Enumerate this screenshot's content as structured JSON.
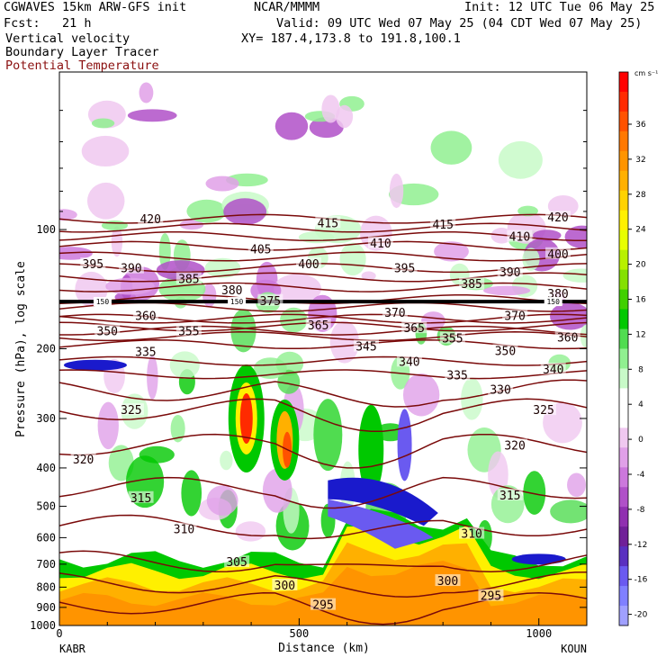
{
  "header": {
    "model": "CGWAVES 15km ARW-GFS init",
    "org": "NCAR/MMMM",
    "init": "Init: 12 UTC Tue 06 May 25",
    "fcst": "Fcst:   21 h",
    "valid": "Valid: 09 UTC Wed 07 May 25 (04 CDT Wed 07 May 25)",
    "field1": "Vertical velocity",
    "field2": "Boundary Layer Tracer",
    "field3": "Potential Temperature",
    "xy": "XY= 187.4,173.8 to 191.8,100.1"
  },
  "colors": {
    "theta_contour": "#7a0a0a",
    "title_red": "#8b1010",
    "tracer": "#1a1acc"
  },
  "chart_data": {
    "type": "heatmap",
    "xlabel": "Distance (km)",
    "ylabel": "Pressure (hPa), log scale",
    "xlim": [
      0,
      1100
    ],
    "ylim": [
      1000,
      40
    ],
    "y_scale": "log",
    "x_ticks": [
      0,
      500,
      1000
    ],
    "y_ticks": [
      100,
      200,
      300,
      400,
      500,
      600,
      700,
      800,
      900,
      1000
    ],
    "x_end_labels": {
      "left": "KABR",
      "right": "KOUN"
    },
    "colorbar": {
      "unit": "cm s⁻¹",
      "ticks": [
        36,
        32,
        28,
        24,
        20,
        16,
        12,
        8,
        4,
        0,
        -4,
        -8,
        -12,
        -16,
        -20
      ],
      "colors": [
        "#ff0000",
        "#ff2a00",
        "#ff5200",
        "#ff7800",
        "#ff9400",
        "#ffb000",
        "#ffd200",
        "#fff000",
        "#e8ff00",
        "#b8f000",
        "#84e000",
        "#40d000",
        "#00c800",
        "#50dc50",
        "#90f090",
        "#c8fac8",
        "#ffffff",
        "#ffffff",
        "#f0c8f0",
        "#e0a0e8",
        "#cc78dc",
        "#b050c8",
        "#9030b0",
        "#702098",
        "#5a30c0",
        "#6a5af0",
        "#8080ff",
        "#a0a0ff"
      ]
    },
    "theta_contours": [
      {
        "theta": 420,
        "p": 94
      },
      {
        "theta": 415,
        "p": 99
      },
      {
        "theta": 410,
        "p": 104
      },
      {
        "theta": 405,
        "p": 110
      },
      {
        "theta": 400,
        "p": 117
      },
      {
        "theta": 395,
        "p": 125
      },
      {
        "theta": 390,
        "p": 132
      },
      {
        "theta": 385,
        "p": 140
      },
      {
        "theta": 380,
        "p": 150
      },
      {
        "theta": 375,
        "p": 157
      },
      {
        "theta": 370,
        "p": 168
      },
      {
        "theta": 365,
        "p": 176
      },
      {
        "theta": 360,
        "p": 168
      },
      {
        "theta": 355,
        "p": 186
      },
      {
        "theta": 350,
        "p": 180
      },
      {
        "theta": 345,
        "p": 195
      },
      {
        "theta": 340,
        "p": 215
      },
      {
        "theta": 335,
        "p": 232
      },
      {
        "theta": 330,
        "p": 255
      },
      {
        "theta": 325,
        "p": 285
      },
      {
        "theta": 320,
        "p": 350
      },
      {
        "theta": 315,
        "p": 450
      },
      {
        "theta": 310,
        "p": 560
      },
      {
        "theta": 305,
        "p": 690
      },
      {
        "theta": 300,
        "p": 780
      },
      {
        "theta": 295,
        "p": 880
      }
    ],
    "theta_labels": [
      {
        "text": "420",
        "x": 190,
        "p": 94
      },
      {
        "text": "415",
        "x": 560,
        "p": 96
      },
      {
        "text": "415",
        "x": 800,
        "p": 97
      },
      {
        "text": "420",
        "x": 1040,
        "p": 93
      },
      {
        "text": "410",
        "x": 670,
        "p": 108
      },
      {
        "text": "410",
        "x": 960,
        "p": 104
      },
      {
        "text": "405",
        "x": 420,
        "p": 112
      },
      {
        "text": "400",
        "x": 520,
        "p": 122
      },
      {
        "text": "400",
        "x": 1040,
        "p": 115
      },
      {
        "text": "395",
        "x": 70,
        "p": 122
      },
      {
        "text": "390",
        "x": 150,
        "p": 125
      },
      {
        "text": "395",
        "x": 720,
        "p": 125
      },
      {
        "text": "390",
        "x": 940,
        "p": 128
      },
      {
        "text": "385",
        "x": 270,
        "p": 133
      },
      {
        "text": "385",
        "x": 860,
        "p": 137
      },
      {
        "text": "380",
        "x": 360,
        "p": 142
      },
      {
        "text": "380",
        "x": 1040,
        "p": 145
      },
      {
        "text": "375",
        "x": 440,
        "p": 151
      },
      {
        "text": "370",
        "x": 700,
        "p": 162
      },
      {
        "text": "370",
        "x": 950,
        "p": 165
      },
      {
        "text": "360",
        "x": 180,
        "p": 165
      },
      {
        "text": "365",
        "x": 540,
        "p": 174
      },
      {
        "text": "365",
        "x": 740,
        "p": 177
      },
      {
        "text": "350",
        "x": 100,
        "p": 180
      },
      {
        "text": "355",
        "x": 270,
        "p": 180
      },
      {
        "text": "355",
        "x": 820,
        "p": 188
      },
      {
        "text": "360",
        "x": 1060,
        "p": 187
      },
      {
        "text": "345",
        "x": 640,
        "p": 197
      },
      {
        "text": "350",
        "x": 930,
        "p": 202
      },
      {
        "text": "335",
        "x": 180,
        "p": 203
      },
      {
        "text": "340",
        "x": 730,
        "p": 215
      },
      {
        "text": "340",
        "x": 1030,
        "p": 225
      },
      {
        "text": "335",
        "x": 830,
        "p": 233
      },
      {
        "text": "330",
        "x": 920,
        "p": 253
      },
      {
        "text": "325",
        "x": 150,
        "p": 285
      },
      {
        "text": "325",
        "x": 1010,
        "p": 285
      },
      {
        "text": "320",
        "x": 950,
        "p": 350
      },
      {
        "text": "320",
        "x": 50,
        "p": 380
      },
      {
        "text": "315",
        "x": 170,
        "p": 475
      },
      {
        "text": "315",
        "x": 940,
        "p": 468
      },
      {
        "text": "310",
        "x": 260,
        "p": 570
      },
      {
        "text": "310",
        "x": 860,
        "p": 585
      },
      {
        "text": "305",
        "x": 370,
        "p": 690
      },
      {
        "text": "300",
        "x": 470,
        "p": 790
      },
      {
        "text": "300",
        "x": 810,
        "p": 770
      },
      {
        "text": "295",
        "x": 550,
        "p": 885
      },
      {
        "text": "295",
        "x": 900,
        "p": 840
      }
    ],
    "tracer_labels": [
      {
        "text": "150",
        "x": 90,
        "p": 152
      },
      {
        "text": "150",
        "x": 370,
        "p": 152
      },
      {
        "text": "150",
        "x": 1030,
        "p": 152
      }
    ]
  }
}
